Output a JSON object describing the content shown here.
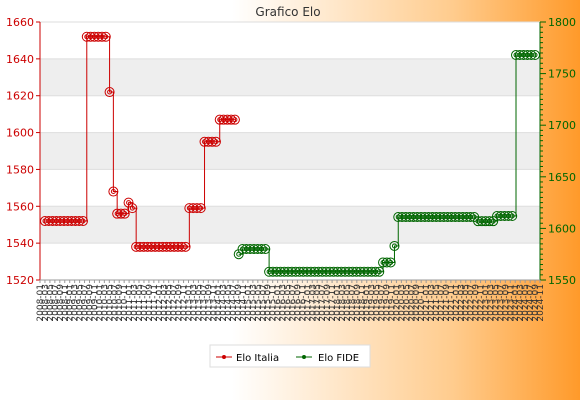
{
  "chart_data": {
    "type": "line",
    "title": "Grafico Elo",
    "colors": {
      "series_left": "#cc0000",
      "series_right": "#006600",
      "band": "#eeeeee"
    },
    "y_left": {
      "min": 1520,
      "max": 1660,
      "ticks": [
        "1520",
        "1540",
        "1560",
        "1580",
        "1600",
        "1620",
        "1640",
        "1660"
      ]
    },
    "y_right": {
      "min": 1550,
      "max": 1800,
      "ticks": [
        "1550",
        "1600",
        "1650",
        "1700",
        "1750",
        "1800"
      ]
    },
    "x_ticks": [
      "2008-01",
      "2008-03",
      "2008-05",
      "2008-07",
      "2008-09",
      "2008-11",
      "2009-01",
      "2009-03",
      "2009-05",
      "2009-07",
      "2009-09",
      "2009-11",
      "2010-01",
      "2010-03",
      "2010-05",
      "2010-07",
      "2010-09",
      "2010-11",
      "2011-01",
      "2011-03",
      "2011-05",
      "2011-07",
      "2011-09",
      "2011-11",
      "2012-01",
      "2012-03",
      "2012-05",
      "2012-07",
      "2012-09",
      "2012-11",
      "2013-01",
      "2013-03",
      "2013-05",
      "2013-07",
      "2013-09",
      "2013-11",
      "2014-01",
      "2014-03",
      "2014-05",
      "2014-07",
      "2014-09",
      "2014-11",
      "2015-01",
      "2015-03",
      "2015-05",
      "2015-07",
      "2015-09",
      "2015-11",
      "2016-01",
      "2016-03",
      "2016-05",
      "2016-07",
      "2016-09",
      "2016-11",
      "2017-01",
      "2017-03",
      "2017-05",
      "2017-07",
      "2017-09",
      "2017-11",
      "2018-01",
      "2018-03",
      "2018-05",
      "2018-07",
      "2018-09",
      "2018-11",
      "2019-01",
      "2019-03",
      "2019-05",
      "2019-07",
      "2019-09",
      "2019-11",
      "2020-01",
      "2020-03",
      "2020-05",
      "2020-07",
      "2020-09",
      "2020-11",
      "2021-01",
      "2021-03",
      "2021-05",
      "2021-07",
      "2021-09",
      "2021-11",
      "2022-01",
      "2022-03",
      "2022-05",
      "2022-07",
      "2022-09",
      "2022-11",
      "2023-01",
      "2023-03",
      "2023-05",
      "2023-07",
      "2023-09",
      "2023-11",
      "2024-01",
      "2024-03",
      "2024-05",
      "2024-07",
      "2024-09",
      "2024-11"
    ],
    "series": [
      {
        "name": "Elo Italia",
        "axis": "left",
        "x": [
          0,
          1,
          2,
          3,
          4,
          5,
          6,
          7,
          8,
          9,
          10,
          11,
          12,
          13,
          14,
          15,
          16,
          17,
          18,
          19,
          20,
          21,
          22,
          23,
          24,
          25,
          26,
          27,
          28,
          29,
          30,
          31,
          32,
          33,
          34,
          35,
          36,
          37,
          38,
          39,
          40,
          41,
          42,
          43,
          44,
          45,
          46,
          47,
          48,
          49,
          50
        ],
        "values": [
          1552,
          1552,
          1552,
          1552,
          1552,
          1552,
          1552,
          1552,
          1552,
          1552,
          1552,
          1652,
          1652,
          1652,
          1652,
          1652,
          1652,
          1622,
          1568,
          1556,
          1556,
          1556,
          1562,
          1559,
          1538,
          1538,
          1538,
          1538,
          1538,
          1538,
          1538,
          1538,
          1538,
          1538,
          1538,
          1538,
          1538,
          1538,
          1559,
          1559,
          1559,
          1559,
          1595,
          1595,
          1595,
          1595,
          1607,
          1607,
          1607,
          1607,
          1607
        ]
      },
      {
        "name": "Elo FIDE",
        "axis": "right",
        "x": [
          51,
          52,
          53,
          54,
          55,
          56,
          57,
          58,
          59,
          60,
          61,
          62,
          63,
          64,
          65,
          66,
          67,
          68,
          69,
          70,
          71,
          72,
          73,
          74,
          75,
          76,
          77,
          78,
          79,
          80,
          81,
          82,
          83,
          84,
          85,
          86,
          87,
          88,
          89,
          90,
          91,
          92,
          93,
          94,
          95,
          96,
          97,
          98,
          99,
          100,
          101,
          102,
          103,
          104,
          105,
          106,
          107,
          108,
          109,
          110,
          111,
          112,
          113,
          114,
          115,
          116,
          117,
          118,
          119,
          120,
          121,
          122,
          123,
          124,
          125,
          126,
          127,
          128,
          129
        ],
        "values": [
          1575,
          1580,
          1580,
          1580,
          1580,
          1580,
          1580,
          1580,
          1558,
          1558,
          1558,
          1558,
          1558,
          1558,
          1558,
          1558,
          1558,
          1558,
          1558,
          1558,
          1558,
          1558,
          1558,
          1558,
          1558,
          1558,
          1558,
          1558,
          1558,
          1558,
          1558,
          1558,
          1558,
          1558,
          1558,
          1558,
          1558,
          1558,
          1567,
          1567,
          1567,
          1583,
          1611,
          1611,
          1611,
          1611,
          1611,
          1611,
          1611,
          1611,
          1611,
          1611,
          1611,
          1611,
          1611,
          1611,
          1611,
          1611,
          1611,
          1611,
          1611,
          1611,
          1611,
          1607,
          1607,
          1607,
          1607,
          1607,
          1612,
          1612,
          1612,
          1612,
          1612,
          1768,
          1768,
          1768,
          1768,
          1768,
          1768
        ]
      }
    ]
  }
}
